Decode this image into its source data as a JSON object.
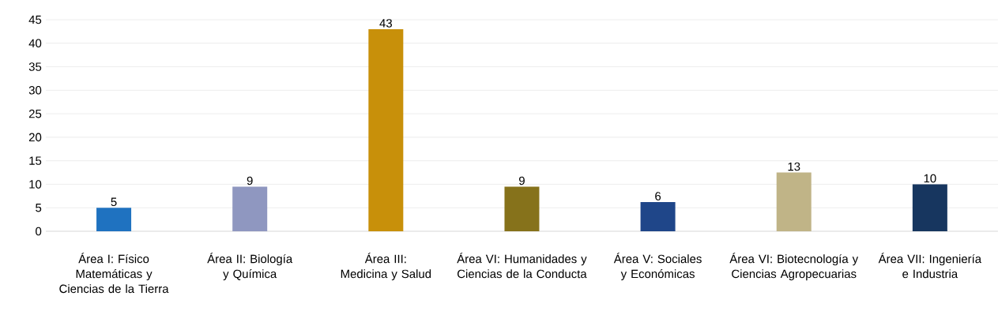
{
  "chart_data": {
    "type": "bar",
    "categories": [
      "Área I: Físico Matemáticas y Ciencias de la Tierra",
      "Área II: Biología y Química",
      "Área III: Medicina y Salud",
      "Área VI: Humanidades y Ciencias de la Conducta",
      "Área V: Sociales y Económicas",
      "Área VI: Biotecnología y Ciencias Agropecuarias",
      "Área VII: Ingeniería e Industria"
    ],
    "values": [
      5,
      9.5,
      43,
      9.5,
      6.2,
      12.5,
      10
    ],
    "value_labels": [
      "5",
      "9",
      "43",
      "9",
      "6",
      "13",
      "10"
    ],
    "colors": [
      "#1f72c0",
      "#8f97c0",
      "#c8900a",
      "#86721b",
      "#1f4689",
      "#c0b487",
      "#17365f"
    ],
    "ylim": [
      0,
      45
    ],
    "yticks": [
      0,
      5,
      10,
      15,
      20,
      25,
      30,
      35,
      40,
      45
    ],
    "grid": "y"
  }
}
